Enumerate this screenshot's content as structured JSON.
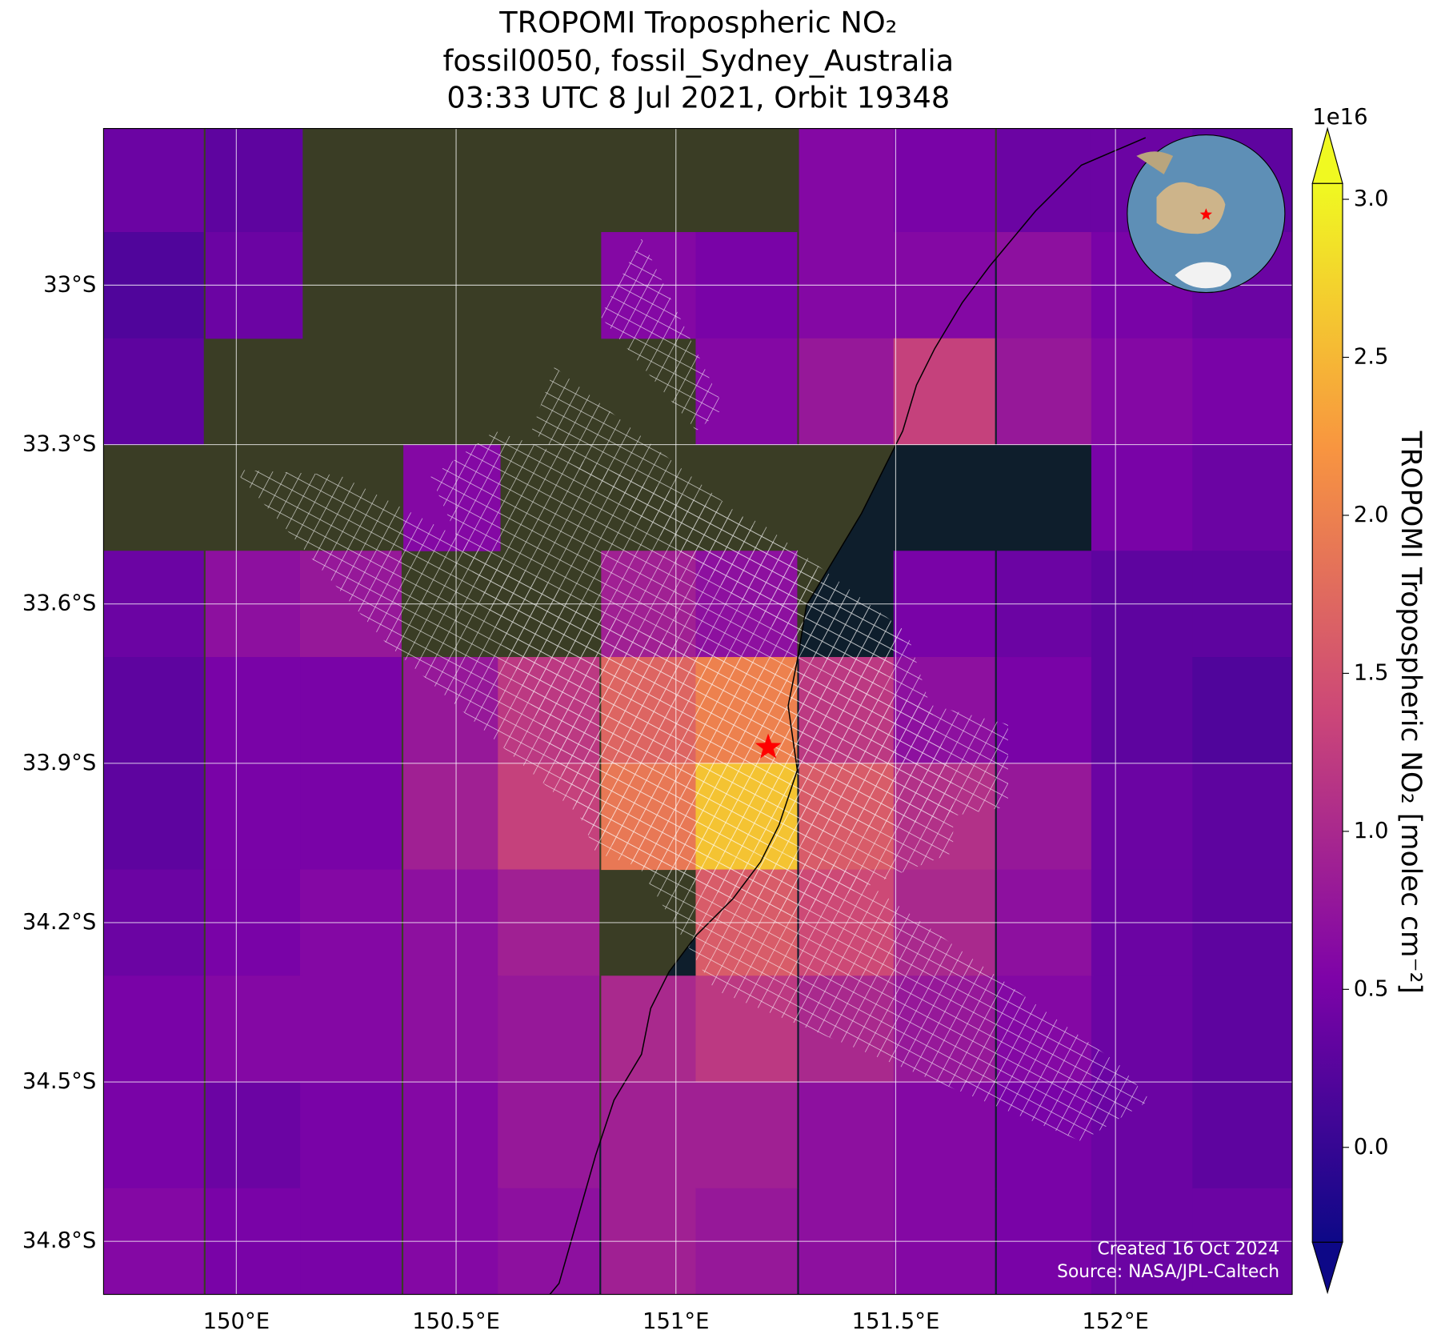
{
  "chart_data": {
    "type": "map",
    "title": [
      "TROPOMI Tropospheric NO₂",
      "fossil0050, fossil_Sydney_Australia",
      "03:33 UTC 8 Jul 2021, Orbit 19348"
    ],
    "xlim": [
      149.698,
      152.402
    ],
    "ylim": [
      -34.9,
      -32.705
    ],
    "xticks": [
      {
        "value": 150,
        "label": "150°E"
      },
      {
        "value": 150.5,
        "label": "150.5°E"
      },
      {
        "value": 151,
        "label": "151°E"
      },
      {
        "value": 151.5,
        "label": "151.5°E"
      },
      {
        "value": 152,
        "label": "152°E"
      }
    ],
    "yticks": [
      {
        "value": -33,
        "label": "33°S"
      },
      {
        "value": -33.3,
        "label": "33.3°S"
      },
      {
        "value": -33.6,
        "label": "33.6°S"
      },
      {
        "value": -33.9,
        "label": "33.9°S"
      },
      {
        "value": -34.2,
        "label": "34.2°S"
      },
      {
        "value": -34.5,
        "label": "34.5°S"
      },
      {
        "value": -34.8,
        "label": "34.8°S"
      }
    ],
    "grid": true,
    "colormap": "plasma",
    "clim": [
      -0.3,
      3.05
    ],
    "cticks": [
      {
        "value": 0,
        "label": "0.0"
      },
      {
        "value": 0.5,
        "label": "0.5"
      },
      {
        "value": 1,
        "label": "1.0"
      },
      {
        "value": 1.5,
        "label": "1.5"
      },
      {
        "value": 2,
        "label": "2.0"
      },
      {
        "value": 2.5,
        "label": "2.5"
      },
      {
        "value": 3,
        "label": "3.0"
      }
    ],
    "colorbar_exponent": "1e16",
    "colorbar_label": "TROPOMI Tropospheric NO₂ [molec cm⁻²]",
    "field": {
      "lon": [
        149.81,
        150.04,
        150.26,
        150.49,
        150.71,
        150.94,
        151.16,
        151.39,
        151.61,
        151.84,
        152.06,
        152.29
      ],
      "lat": [
        -32.8,
        -33.0,
        -33.2,
        -33.4,
        -33.6,
        -33.8,
        -34.0,
        -34.2,
        -34.4,
        -34.6,
        -34.8
      ],
      "values": [
        [
          0.4,
          0.3,
          null,
          null,
          null,
          null,
          null,
          0.6,
          0.5,
          0.4,
          0.4,
          0.3
        ],
        [
          0.2,
          0.4,
          null,
          null,
          null,
          0.6,
          0.5,
          0.6,
          0.6,
          0.7,
          0.5,
          0.4
        ],
        [
          0.3,
          null,
          null,
          null,
          null,
          null,
          0.6,
          0.8,
          1.3,
          0.8,
          0.6,
          0.5
        ],
        [
          null,
          null,
          null,
          0.6,
          null,
          null,
          null,
          null,
          null,
          null,
          0.5,
          0.4
        ],
        [
          0.4,
          0.7,
          0.8,
          null,
          null,
          0.9,
          0.7,
          null,
          0.5,
          0.4,
          0.3,
          0.3
        ],
        [
          0.3,
          0.5,
          0.5,
          0.8,
          1.2,
          1.7,
          2.0,
          1.2,
          0.7,
          0.5,
          0.3,
          0.2
        ],
        [
          0.3,
          0.5,
          0.5,
          0.9,
          1.3,
          1.9,
          2.6,
          1.6,
          1.1,
          0.8,
          0.4,
          0.3
        ],
        [
          0.4,
          0.5,
          0.6,
          0.7,
          0.9,
          null,
          1.6,
          1.4,
          1.0,
          0.7,
          0.4,
          0.3
        ],
        [
          0.5,
          0.6,
          0.6,
          0.7,
          0.8,
          1.0,
          1.2,
          1.0,
          0.8,
          0.6,
          0.4,
          0.3
        ],
        [
          0.5,
          0.4,
          0.5,
          0.6,
          0.8,
          0.9,
          0.9,
          0.7,
          0.6,
          0.5,
          0.4,
          0.3
        ],
        [
          0.6,
          0.5,
          0.5,
          0.6,
          0.7,
          0.9,
          0.8,
          0.7,
          0.6,
          0.5,
          0.4,
          0.4
        ]
      ]
    },
    "site": {
      "lon": 151.21,
      "lat": -33.87,
      "color": "#ff0000"
    },
    "footer": [
      "Created 16 Oct 2024",
      "Source: NASA/JPL-Caltech"
    ]
  }
}
